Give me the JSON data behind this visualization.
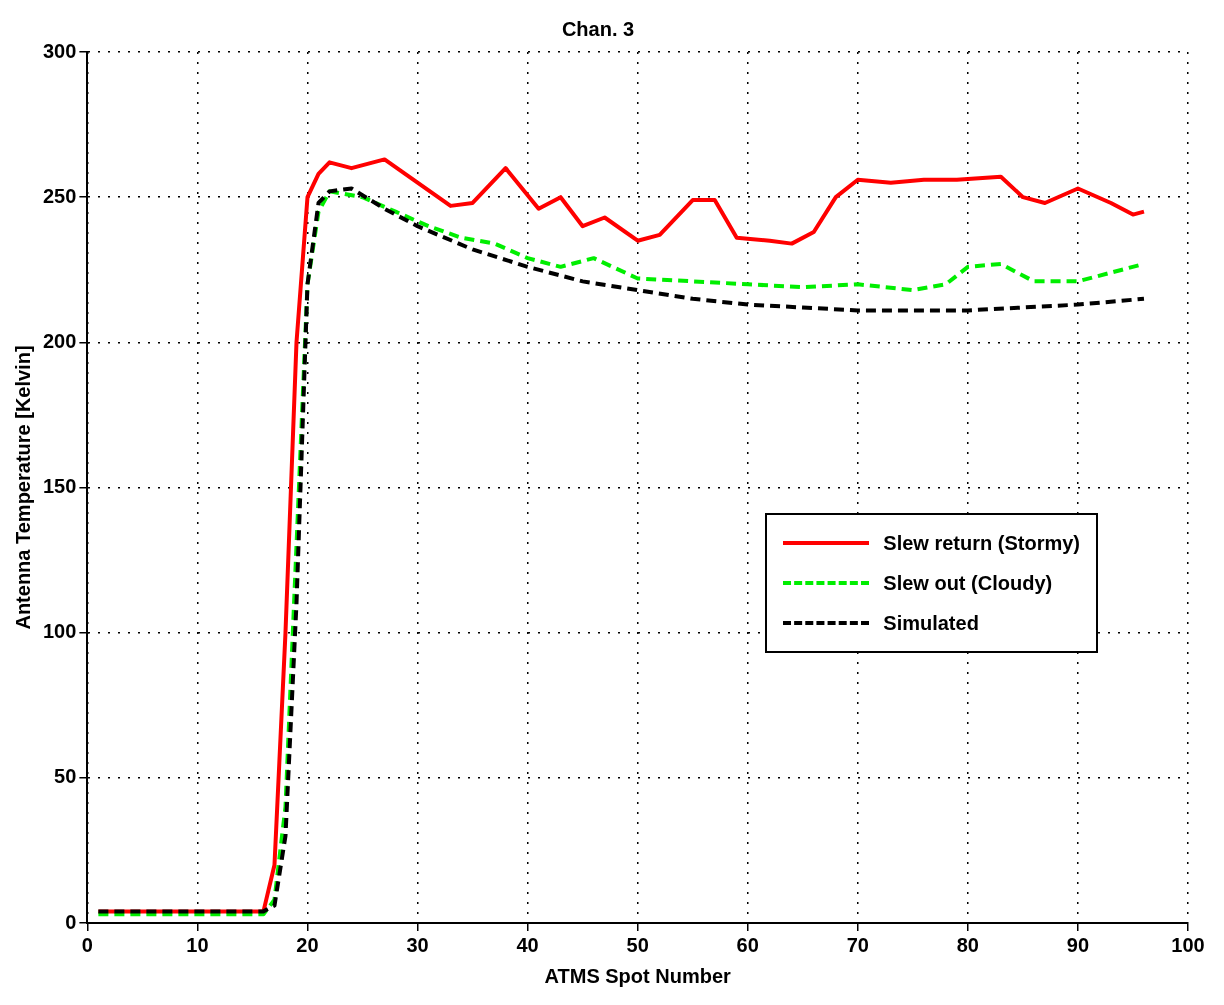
{
  "chart_data": {
    "type": "line",
    "title": "Chan. 3",
    "xlabel": "ATMS Spot Number",
    "ylabel": "Antenna Temperature [Kelvin]",
    "xlim": [
      0,
      100
    ],
    "xticks": [
      0,
      10,
      20,
      30,
      40,
      50,
      60,
      70,
      80,
      90,
      100
    ],
    "ylim": [
      0,
      300
    ],
    "yticks": [
      0,
      50,
      100,
      150,
      200,
      250,
      300
    ],
    "grid": true,
    "legend": "right",
    "marker": "none",
    "series": [
      {
        "name": "Slew return (Stormy)",
        "color": "#ff0000",
        "line_style": "solid",
        "x": [
          1,
          5,
          10,
          16,
          17,
          18,
          19,
          20,
          21,
          22,
          24,
          27,
          30,
          33,
          35,
          38,
          41,
          43,
          45,
          47,
          50,
          52,
          55,
          57,
          59,
          62,
          64,
          66,
          68,
          70,
          73,
          76,
          79,
          83,
          85,
          87,
          90,
          93,
          95,
          96
        ],
        "values": [
          4,
          4,
          4,
          4,
          20,
          100,
          200,
          250,
          258,
          262,
          260,
          263,
          255,
          247,
          248,
          260,
          246,
          250,
          240,
          243,
          235,
          237,
          249,
          249,
          236,
          235,
          234,
          238,
          250,
          256,
          255,
          256,
          256,
          257,
          250,
          248,
          253,
          248,
          244,
          245
        ]
      },
      {
        "name": "Slew out (Cloudy)",
        "color": "#00ee00",
        "line_style": "dashed",
        "x": [
          1,
          5,
          10,
          16,
          17,
          18,
          19,
          20,
          21,
          22,
          25,
          28,
          31,
          34,
          37,
          40,
          43,
          46,
          50,
          55,
          60,
          65,
          70,
          75,
          78,
          80,
          83,
          86,
          90,
          93,
          96
        ],
        "values": [
          3,
          3,
          3,
          3,
          8,
          40,
          130,
          220,
          245,
          252,
          250,
          245,
          240,
          236,
          234,
          229,
          226,
          229,
          222,
          221,
          220,
          219,
          220,
          218,
          220,
          226,
          227,
          221,
          221,
          224,
          227
        ]
      },
      {
        "name": "Simulated",
        "color": "#000000",
        "line_style": "dashed",
        "x": [
          1,
          5,
          10,
          16,
          17,
          18,
          19,
          20,
          21,
          22,
          24,
          27,
          30,
          35,
          40,
          45,
          50,
          55,
          60,
          65,
          70,
          75,
          80,
          85,
          90,
          96
        ],
        "values": [
          4,
          4,
          4,
          4,
          6,
          30,
          110,
          220,
          248,
          252,
          253,
          246,
          240,
          232,
          226,
          221,
          218,
          215,
          213,
          212,
          211,
          211,
          211,
          212,
          213,
          215
        ]
      }
    ]
  }
}
